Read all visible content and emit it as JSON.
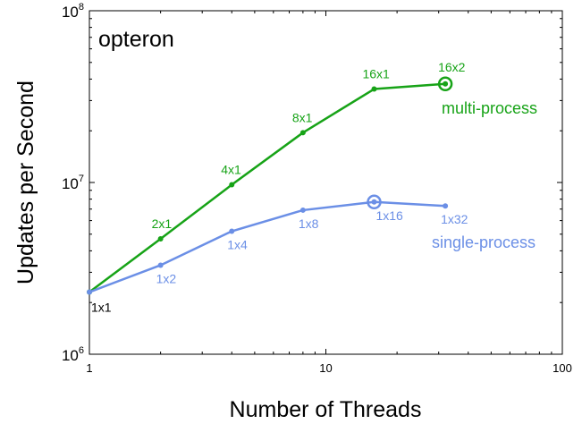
{
  "chart_data": {
    "type": "line",
    "title": "opteron",
    "xlabel": "Number of Threads",
    "ylabel": "Updates per Second",
    "xscale": "log",
    "yscale": "log",
    "xlim": [
      1,
      100
    ],
    "ylim": [
      1000000,
      100000000
    ],
    "x_ticks": [
      {
        "value": 1,
        "label": "1"
      },
      {
        "value": 10,
        "label": "10"
      },
      {
        "value": 100,
        "label": "100"
      }
    ],
    "y_ticks": [
      {
        "value": 1000000,
        "base": "10",
        "exp": "6"
      },
      {
        "value": 10000000,
        "base": "10",
        "exp": "7"
      },
      {
        "value": 100000000,
        "base": "10",
        "exp": "8"
      }
    ],
    "grid": false,
    "series": [
      {
        "name": "multi-process",
        "color": "#17a317",
        "highlight_x": 32,
        "points": [
          {
            "x": 1,
            "y": 2300000,
            "label": "1x1"
          },
          {
            "x": 2,
            "y": 4700000,
            "label": "2x1"
          },
          {
            "x": 4,
            "y": 9700000,
            "label": "4x1"
          },
          {
            "x": 8,
            "y": 19500000,
            "label": "8x1"
          },
          {
            "x": 16,
            "y": 35000000,
            "label": "16x1"
          },
          {
            "x": 32,
            "y": 37500000,
            "label": "16x2"
          }
        ]
      },
      {
        "name": "single-process",
        "color": "#6b8fe6",
        "highlight_x": 16,
        "points": [
          {
            "x": 1,
            "y": 2300000,
            "label": "1x1"
          },
          {
            "x": 2,
            "y": 3300000,
            "label": "1x2"
          },
          {
            "x": 4,
            "y": 5200000,
            "label": "1x4"
          },
          {
            "x": 8,
            "y": 6900000,
            "label": "1x8"
          },
          {
            "x": 16,
            "y": 7700000,
            "label": "1x16"
          },
          {
            "x": 32,
            "y": 7300000,
            "label": "1x32"
          }
        ]
      }
    ]
  }
}
